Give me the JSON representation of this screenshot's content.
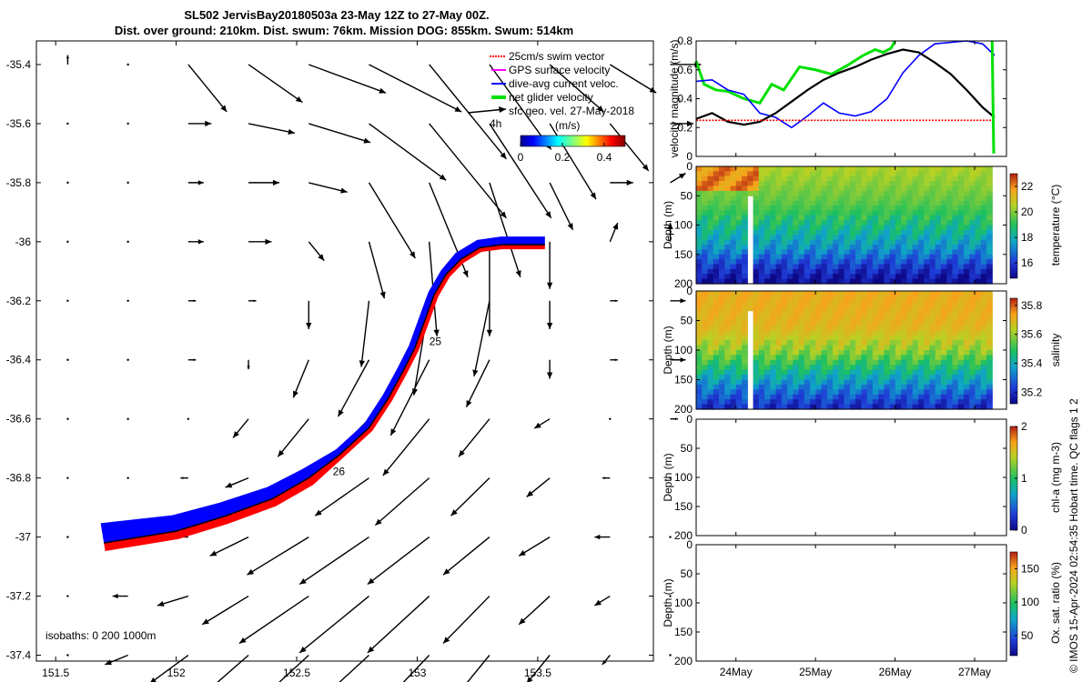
{
  "title": {
    "line1": "SL502 JervisBay20180503a 23-May 12Z to 27-May 00Z.",
    "line2": "Dist. over ground: 210km. Dist. swum: 76km. Mission DOG: 855km. Swum: 514km"
  },
  "credit": "© IMOS 15-Apr-2024 02:54:35 Hobart time. QC flags 1  2",
  "colors": {
    "swim": "#ff0000",
    "gps": "#ff00ff",
    "dive_avg": "#0000ff",
    "net_glider": "#00e000",
    "geo": "#000000"
  },
  "chart_data": [
    {
      "id": "map",
      "type": "quiver-map",
      "xlim": [
        151.42,
        153.98
      ],
      "ylim": [
        -37.42,
        -35.32
      ],
      "x_ticks": [
        151.5,
        152,
        152.5,
        153,
        153.5
      ],
      "x_tick_labels": [
        "151.5",
        "152",
        "152.5",
        "153",
        "153.5"
      ],
      "y_ticks": [
        -35.4,
        -35.6,
        -35.8,
        -36,
        -36.2,
        -36.4,
        -36.6,
        -36.8,
        -37,
        -37.2,
        -37.4
      ],
      "y_tick_labels": [
        "-35.4",
        "-35.6",
        "-35.8",
        "-36",
        "-36.2",
        "-36.4",
        "-36.6",
        "-36.8",
        "-37",
        "-37.2",
        "-37.4"
      ],
      "legend": [
        {
          "label": "25cm/s swim vector",
          "color_key": "swim"
        },
        {
          "label": "GPS surface velocity",
          "color_key": "gps"
        },
        {
          "label": "dive-avg current veloc.",
          "color_key": "dive_avg"
        },
        {
          "label": "net glider velocity",
          "color_key": "net_glider"
        },
        {
          "label": "sfc geo. vel. 27-May-2018",
          "color_key": "geo"
        }
      ],
      "colorbar": {
        "label": "(m/s)",
        "range": [
          0,
          0.5
        ],
        "ticks": [
          0,
          0.2,
          0.4
        ],
        "tick_labels": [
          "0",
          "0.2",
          "0.4"
        ]
      },
      "note": "4h",
      "isobaths_label": "isobaths: 0   200   1000m",
      "track": {
        "lon": [
          151.7,
          151.85,
          152.0,
          152.2,
          152.4,
          152.55,
          152.68,
          152.8,
          152.88,
          152.94,
          152.99,
          153.03,
          153.07,
          153.12,
          153.18,
          153.26,
          153.35,
          153.45,
          153.53
        ],
        "lat": [
          -37.02,
          -37.0,
          -36.98,
          -36.93,
          -36.87,
          -36.8,
          -36.72,
          -36.63,
          -36.53,
          -36.44,
          -36.36,
          -36.27,
          -36.18,
          -36.11,
          -36.06,
          -36.02,
          -36.01,
          -36.01,
          -36.01
        ]
      },
      "track_labels": [
        {
          "text": "25",
          "lon": 153.05,
          "lat": -36.35
        },
        {
          "text": "26",
          "lon": 152.65,
          "lat": -36.79
        }
      ],
      "geo_vectors": {
        "comment": "vector grid, components in degrees per arrow (derived from visual estimation)",
        "rows": [
          [
            [
              0,
              0.01
            ],
            [
              0,
              0
            ],
            [
              0.05,
              -0.05
            ],
            [
              0.07,
              -0.04
            ],
            [
              0.1,
              -0.03
            ],
            [
              0.12,
              -0.05
            ],
            [
              0.1,
              -0.1
            ],
            [
              0.08,
              -0.09
            ],
            [
              0.07,
              -0.05
            ],
            [
              0.06,
              -0.03
            ],
            [
              0.04,
              0
            ]
          ],
          [
            [
              0,
              0
            ],
            [
              0,
              0
            ],
            [
              0.03,
              0
            ],
            [
              0.06,
              -0.01
            ],
            [
              0.08,
              -0.02
            ],
            [
              0.1,
              -0.06
            ],
            [
              0.1,
              -0.1
            ],
            [
              0.08,
              -0.1
            ],
            [
              0.06,
              -0.08
            ],
            [
              0.05,
              -0.05
            ],
            [
              0.03,
              0
            ]
          ],
          [
            [
              0,
              0
            ],
            [
              0,
              0
            ],
            [
              0.02,
              0
            ],
            [
              0.04,
              0
            ],
            [
              0.05,
              -0.01
            ],
            [
              0.06,
              -0.08
            ],
            [
              0.05,
              -0.1
            ],
            [
              0.04,
              -0.1
            ],
            [
              0.03,
              -0.05
            ],
            [
              0.03,
              0
            ],
            [
              0.02,
              0.01
            ]
          ],
          [
            [
              0,
              0
            ],
            [
              0,
              0
            ],
            [
              0.02,
              0
            ],
            [
              0.03,
              0
            ],
            [
              0.02,
              -0.02
            ],
            [
              0.02,
              -0.06
            ],
            [
              0.01,
              -0.1
            ],
            [
              0.0,
              -0.1
            ],
            [
              0.0,
              -0.05
            ],
            [
              0.01,
              0.02
            ],
            [
              0,
              0.02
            ]
          ],
          [
            [
              0,
              0
            ],
            [
              0,
              0
            ],
            [
              0.01,
              0
            ],
            [
              0.01,
              0
            ],
            [
              0.0,
              -0.03
            ],
            [
              -0.01,
              -0.07
            ],
            [
              -0.02,
              -0.1
            ],
            [
              -0.02,
              -0.08
            ],
            [
              0.0,
              -0.03
            ],
            [
              0.01,
              0
            ],
            [
              0.02,
              0
            ]
          ],
          [
            [
              0,
              0
            ],
            [
              0,
              0
            ],
            [
              0.01,
              0
            ],
            [
              0.0,
              -0.01
            ],
            [
              -0.02,
              -0.04
            ],
            [
              -0.04,
              -0.06
            ],
            [
              -0.05,
              -0.08
            ],
            [
              -0.03,
              -0.05
            ],
            [
              0.0,
              -0.02
            ],
            [
              0.01,
              0
            ],
            [
              0.02,
              0
            ]
          ],
          [
            [
              0,
              0
            ],
            [
              0,
              0
            ],
            [
              0.0,
              0
            ],
            [
              -0.02,
              -0.02
            ],
            [
              -0.04,
              -0.04
            ],
            [
              -0.06,
              -0.05
            ],
            [
              -0.06,
              -0.06
            ],
            [
              -0.04,
              -0.04
            ],
            [
              -0.02,
              -0.01
            ],
            [
              0.0,
              0
            ],
            [
              0.01,
              0
            ]
          ],
          [
            [
              0,
              0
            ],
            [
              0,
              0
            ],
            [
              -0.01,
              0
            ],
            [
              -0.03,
              -0.01
            ],
            [
              -0.05,
              -0.03
            ],
            [
              -0.07,
              -0.04
            ],
            [
              -0.07,
              -0.05
            ],
            [
              -0.05,
              -0.04
            ],
            [
              -0.03,
              -0.02
            ],
            [
              -0.01,
              0
            ],
            [
              0,
              0
            ]
          ],
          [
            [
              0,
              0
            ],
            [
              -0.01,
              0
            ],
            [
              -0.02,
              0
            ],
            [
              -0.05,
              -0.02
            ],
            [
              -0.08,
              -0.04
            ],
            [
              -0.09,
              -0.05
            ],
            [
              -0.08,
              -0.05
            ],
            [
              -0.06,
              -0.04
            ],
            [
              -0.04,
              -0.02
            ],
            [
              -0.02,
              0
            ],
            [
              0,
              0
            ]
          ],
          [
            [
              0,
              0
            ],
            [
              -0.02,
              0
            ],
            [
              -0.04,
              -0.01
            ],
            [
              -0.06,
              -0.03
            ],
            [
              -0.09,
              -0.05
            ],
            [
              -0.09,
              -0.06
            ],
            [
              -0.08,
              -0.06
            ],
            [
              -0.06,
              -0.05
            ],
            [
              -0.04,
              -0.03
            ],
            [
              -0.02,
              -0.01
            ],
            [
              0,
              0
            ]
          ],
          [
            [
              0,
              0
            ],
            [
              -0.03,
              -0.01
            ],
            [
              -0.05,
              -0.03
            ],
            [
              -0.07,
              -0.05
            ],
            [
              -0.08,
              -0.06
            ],
            [
              -0.08,
              -0.06
            ],
            [
              -0.07,
              -0.06
            ],
            [
              -0.05,
              -0.05
            ],
            [
              -0.03,
              -0.03
            ],
            [
              -0.01,
              -0.01
            ],
            [
              0,
              0
            ]
          ]
        ]
      }
    },
    {
      "id": "velocity",
      "type": "line",
      "ylabel": "velocity magnitude (m/s)",
      "xlim": [
        23.5,
        27.4
      ],
      "ylim": [
        0,
        0.8
      ],
      "y_ticks": [
        0,
        0.2,
        0.4,
        0.6,
        0.8
      ],
      "y_tick_labels": [
        "0",
        "0.2",
        "0.4",
        "0.6",
        "0.8"
      ],
      "series": [
        {
          "color_key": "net_glider",
          "x": [
            23.5,
            23.6,
            23.75,
            23.9,
            24.1,
            24.3,
            24.45,
            24.6,
            24.8,
            25.0,
            25.2,
            25.4,
            25.6,
            25.75,
            25.85,
            25.95,
            26.0
          ],
          "y": [
            0.66,
            0.5,
            0.46,
            0.45,
            0.4,
            0.37,
            0.5,
            0.46,
            0.62,
            0.6,
            0.57,
            0.63,
            0.7,
            0.74,
            0.72,
            0.75,
            0.8
          ]
        },
        {
          "color_key": "dive_avg",
          "x": [
            23.5,
            23.7,
            23.9,
            24.1,
            24.3,
            24.5,
            24.7,
            24.9,
            25.1,
            25.3,
            25.5,
            25.7,
            25.9,
            26.1,
            26.3,
            26.5,
            26.9,
            27.1,
            27.25
          ],
          "y": [
            0.52,
            0.53,
            0.46,
            0.43,
            0.3,
            0.27,
            0.2,
            0.28,
            0.37,
            0.3,
            0.28,
            0.31,
            0.4,
            0.58,
            0.7,
            0.78,
            0.8,
            0.78,
            0.7
          ]
        },
        {
          "color_key": "geo",
          "x": [
            23.5,
            23.7,
            23.9,
            24.1,
            24.3,
            24.5,
            24.7,
            24.9,
            25.1,
            25.3,
            25.5,
            25.7,
            25.9,
            26.1,
            26.3,
            26.5,
            26.7,
            26.9,
            27.1,
            27.25
          ],
          "y": [
            0.26,
            0.3,
            0.24,
            0.22,
            0.24,
            0.3,
            0.38,
            0.46,
            0.53,
            0.58,
            0.62,
            0.67,
            0.71,
            0.74,
            0.72,
            0.65,
            0.57,
            0.46,
            0.34,
            0.27
          ]
        },
        {
          "color_key": "swim",
          "x": [
            23.5,
            27.25
          ],
          "y": [
            0.25,
            0.25
          ]
        },
        {
          "color_key": "net_glider",
          "x": [
            27.22,
            27.23,
            27.24
          ],
          "y": [
            0.8,
            0.4,
            0.02
          ]
        }
      ]
    },
    {
      "id": "temperature",
      "type": "heatmap",
      "ylabel": "Depth (m)",
      "cbar_label": "temperature (°C)",
      "xlim": [
        23.5,
        27.4
      ],
      "ylim": [
        200,
        0
      ],
      "y_ticks": [
        0,
        50,
        100,
        150,
        200
      ],
      "y_tick_labels": [
        "0",
        "50",
        "100",
        "150",
        "200"
      ],
      "crange": [
        14.8,
        23
      ],
      "cbar_ticks": [
        16,
        18,
        20,
        22
      ],
      "cbar_tick_labels": [
        "16",
        "18",
        "20",
        "22"
      ],
      "x_end": 27.22,
      "profile": [
        {
          "depth": 0,
          "value": 20.5
        },
        {
          "depth": 60,
          "value": 19.6
        },
        {
          "depth": 100,
          "value": 18.6
        },
        {
          "depth": 140,
          "value": 17.4
        },
        {
          "depth": 170,
          "value": 16.0
        },
        {
          "depth": 195,
          "value": 15.0
        }
      ],
      "warm_patch": {
        "x0": 23.5,
        "x1": 24.3,
        "depth_max": 40,
        "value": 22.0
      },
      "gap": {
        "x0": 24.15,
        "x1": 24.2,
        "depth_min": 50
      }
    },
    {
      "id": "salinity",
      "type": "heatmap",
      "ylabel": "Depth (m)",
      "cbar_label": "salinity",
      "xlim": [
        23.5,
        27.4
      ],
      "ylim": [
        200,
        0
      ],
      "y_ticks": [
        0,
        50,
        100,
        150,
        200
      ],
      "y_tick_labels": [
        "0",
        "50",
        "100",
        "150",
        "200"
      ],
      "crange": [
        35.12,
        35.85
      ],
      "cbar_ticks": [
        35.2,
        35.4,
        35.6,
        35.8
      ],
      "cbar_tick_labels": [
        "35.2",
        "35.4",
        "35.6",
        "35.8"
      ],
      "x_end": 27.22,
      "profile": [
        {
          "depth": 0,
          "value": 35.72
        },
        {
          "depth": 60,
          "value": 35.7
        },
        {
          "depth": 100,
          "value": 35.6
        },
        {
          "depth": 140,
          "value": 35.42
        },
        {
          "depth": 170,
          "value": 35.3
        },
        {
          "depth": 195,
          "value": 35.2
        }
      ],
      "gap": {
        "x0": 24.15,
        "x1": 24.2,
        "depth_min": 35
      }
    },
    {
      "id": "chla",
      "type": "heatmap-empty",
      "ylabel": "Depth (m)",
      "cbar_label": "chl-a (mg m-3)",
      "ylim": [
        200,
        0
      ],
      "y_ticks": [
        0,
        50,
        100,
        150,
        200
      ],
      "y_tick_labels": [
        "0",
        "50",
        "100",
        "150",
        "200"
      ],
      "crange": [
        0,
        2
      ],
      "cbar_ticks": [
        0,
        1,
        2
      ],
      "cbar_tick_labels": [
        "0",
        "1",
        "2"
      ]
    },
    {
      "id": "oxygen",
      "type": "heatmap-empty",
      "ylabel": "Depth (m)",
      "cbar_label": "Ox. sat. ratio (%)",
      "ylim": [
        200,
        0
      ],
      "y_ticks": [
        0,
        50,
        100,
        150,
        200
      ],
      "y_tick_labels": [
        "0",
        "50",
        "100",
        "150",
        "200"
      ],
      "crange": [
        20,
        175
      ],
      "cbar_ticks": [
        50,
        100,
        150
      ],
      "cbar_tick_labels": [
        "50",
        "100",
        "150"
      ],
      "x_ticks": [
        24,
        25,
        26,
        27
      ],
      "x_tick_labels": [
        "24May",
        "25May",
        "26May",
        "27May"
      ]
    }
  ]
}
